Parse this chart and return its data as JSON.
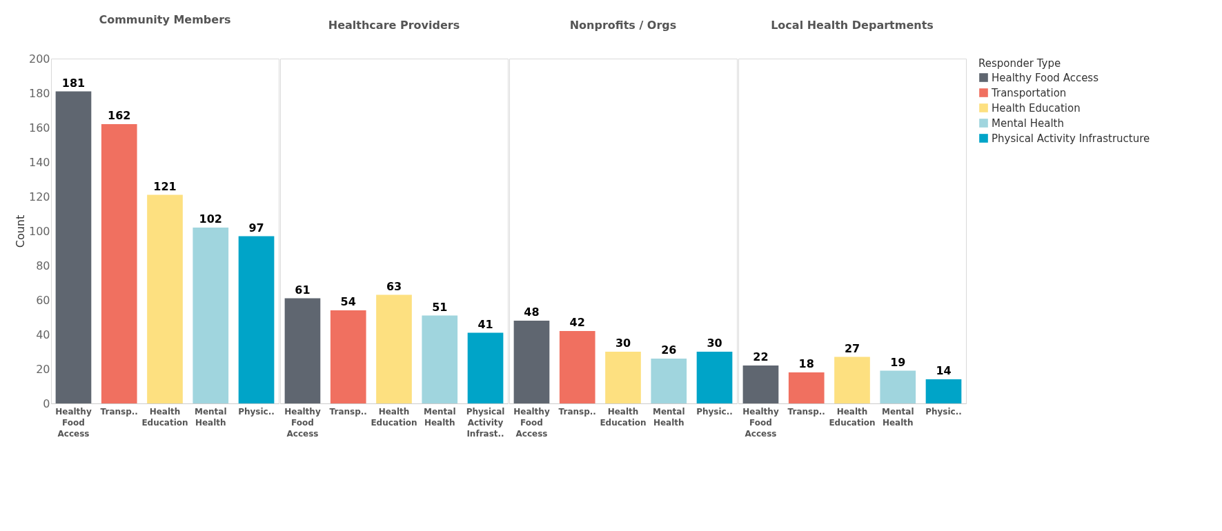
{
  "chart_data": [
    {
      "type": "bar",
      "title": "Community Members",
      "ylabel": "Count",
      "categories": [
        "Healthy Food Access",
        "Transp..",
        "Health Education",
        "Mental Health",
        "Physic.."
      ],
      "ylim": [
        0,
        200
      ],
      "yticks": [
        0,
        20,
        40,
        60,
        80,
        100,
        120,
        140,
        160,
        180,
        200
      ],
      "data_labels": true,
      "series": [
        {
          "color": "#5f6670",
          "values": [
            181,
            null,
            null,
            null,
            null
          ]
        },
        {
          "color": "#f07060",
          "values": [
            null,
            162,
            null,
            null,
            null
          ]
        },
        {
          "color": "#fde080",
          "values": [
            null,
            null,
            121,
            null,
            null
          ]
        },
        {
          "color": "#a0d5de",
          "values": [
            null,
            null,
            null,
            102,
            null
          ]
        },
        {
          "color": "#00a4c8",
          "values": [
            null,
            null,
            null,
            null,
            97
          ]
        }
      ]
    },
    {
      "type": "bar",
      "title": "Healthcare Providers",
      "categories": [
        "Healthy Food Access",
        "Transp..",
        "Health Education",
        "Mental Health",
        "Physical Activity Infrast.."
      ],
      "ylim": [
        0,
        200
      ],
      "tick_labels": "x",
      "data_labels": true,
      "series": [
        {
          "color": "#5f6670",
          "values": [
            61,
            null,
            null,
            null,
            null
          ]
        },
        {
          "color": "#f07060",
          "values": [
            null,
            54,
            null,
            null,
            null
          ]
        },
        {
          "color": "#fde080",
          "values": [
            null,
            null,
            63,
            null,
            null
          ]
        },
        {
          "color": "#a0d5de",
          "values": [
            null,
            null,
            null,
            51,
            null
          ]
        },
        {
          "color": "#00a4c8",
          "values": [
            null,
            null,
            null,
            null,
            41
          ]
        }
      ]
    },
    {
      "type": "bar",
      "title": "Nonprofits / Orgs",
      "categories": [
        "Healthy Food Access",
        "Transp..",
        "Health Education",
        "Mental Health",
        "Physic.."
      ],
      "ylim": [
        0,
        200
      ],
      "tick_labels": "x",
      "data_labels": true,
      "series": [
        {
          "color": "#5f6670",
          "values": [
            48,
            null,
            null,
            null,
            null
          ]
        },
        {
          "color": "#f07060",
          "values": [
            null,
            42,
            null,
            null,
            null
          ]
        },
        {
          "color": "#fde080",
          "values": [
            null,
            null,
            30,
            null,
            null
          ]
        },
        {
          "color": "#a0d5de",
          "values": [
            null,
            null,
            null,
            26,
            null
          ]
        },
        {
          "color": "#00a4c8",
          "values": [
            null,
            null,
            null,
            null,
            30
          ]
        }
      ]
    },
    {
      "type": "bar",
      "title": "Local Health Departments",
      "categories": [
        "Healthy Food Access",
        "Transp..",
        "Health Education",
        "Mental Health",
        "Physic.."
      ],
      "ylim": [
        0,
        200
      ],
      "tick_labels": "x",
      "data_labels": true,
      "legend": "right",
      "legend_title": "Responder Type",
      "series": [
        {
          "name": "Healthy Food Access",
          "color": "#5f6670",
          "values": [
            22,
            null,
            null,
            null,
            null
          ]
        },
        {
          "name": "Transportation",
          "color": "#f07060",
          "values": [
            null,
            18,
            null,
            null,
            null
          ]
        },
        {
          "name": "Health Education",
          "color": "#fde080",
          "values": [
            null,
            null,
            27,
            null,
            null
          ]
        },
        {
          "name": "Mental Health",
          "color": "#a0d5de",
          "values": [
            null,
            null,
            null,
            19,
            null
          ]
        },
        {
          "name": "Physical Activity Infrastructure",
          "color": "#00a4c8",
          "values": [
            null,
            null,
            null,
            null,
            14
          ]
        }
      ]
    }
  ]
}
